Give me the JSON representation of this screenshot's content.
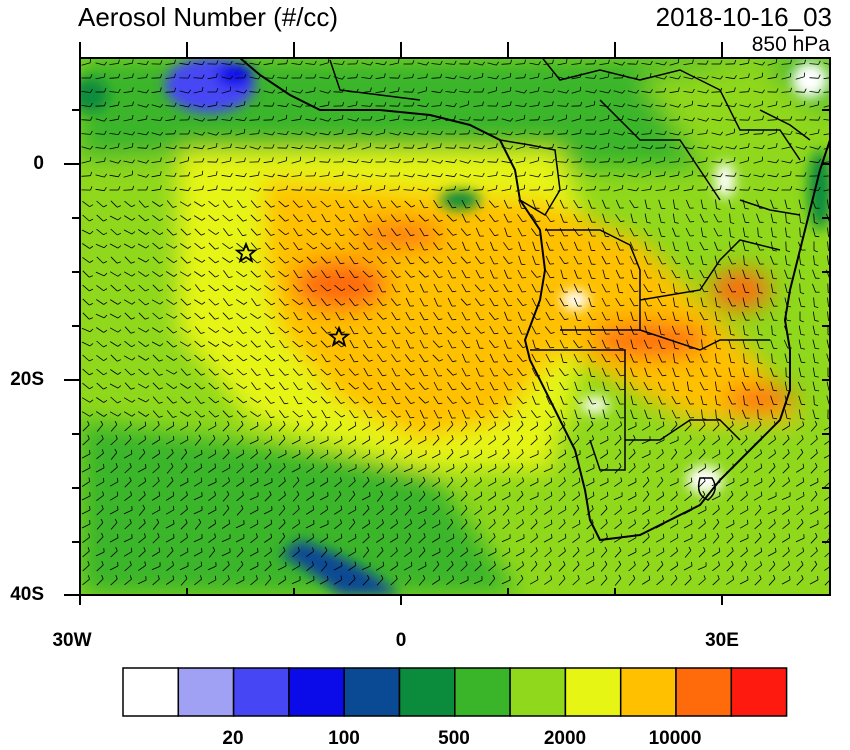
{
  "header": {
    "title": "Aerosol Number (#/cc)",
    "datetime": "2018-10-16_03",
    "level": "850 hPa"
  },
  "axes": {
    "lat_ticks": [
      "0",
      "20S",
      "40S"
    ],
    "lon_ticks": [
      "30W",
      "0",
      "30E"
    ]
  },
  "colorbar": {
    "colors": [
      "#ffffff",
      "#a0a0f5",
      "#4646f5",
      "#0b0be9",
      "#0a4a94",
      "#0a8c3c",
      "#3ab52a",
      "#8fd81c",
      "#e6f514",
      "#ffc000",
      "#ff6a0a",
      "#ff1a10"
    ],
    "labels": [
      "20",
      "100",
      "500",
      "2000",
      "10000"
    ]
  },
  "markers": [
    {
      "name": "star-marker-west"
    },
    {
      "name": "star-marker-center"
    }
  ]
}
